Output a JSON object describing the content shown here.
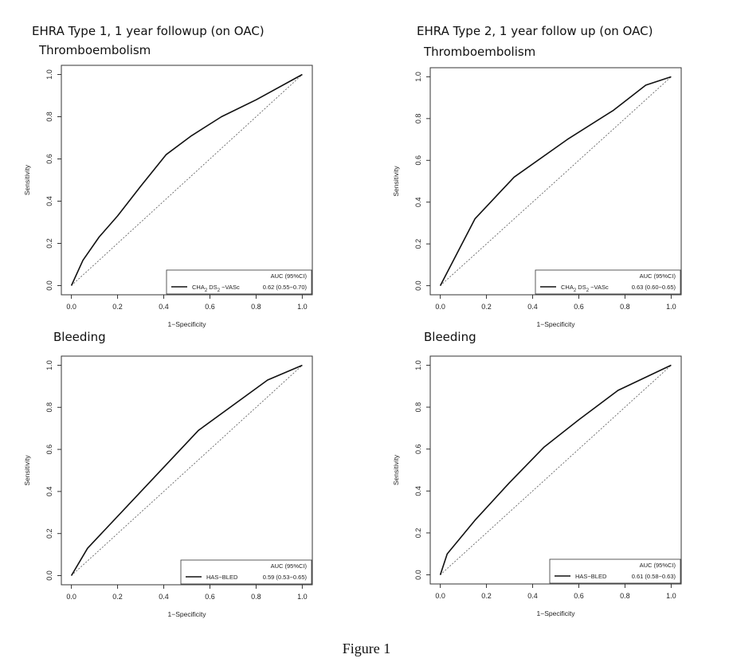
{
  "figure": {
    "caption": "Figure 1"
  },
  "headers": {
    "type1": "EHRA Type 1, 1 year followup (on OAC)",
    "type2": "EHRA Type 2, 1 year follow up (on OAC)"
  },
  "chart_data": [
    {
      "type": "line",
      "title": "Thromboembolism",
      "xlabel": "1−Specificity",
      "ylabel": "Sensitivity",
      "xlim": [
        0,
        1
      ],
      "ylim": [
        0,
        1
      ],
      "xticks": [
        "0.0",
        "0.2",
        "0.4",
        "0.6",
        "0.8",
        "1.0"
      ],
      "yticks": [
        "0.0",
        "0.2",
        "0.4",
        "0.6",
        "0.8",
        "1.0"
      ],
      "legend": {
        "position": "bottom-right",
        "header": "AUC (95%CI)",
        "label_html": "CHA<tspan baseline-shift=\"sub\" font-size=\"6\">2</tspan> DS<tspan baseline-shift=\"sub\" font-size=\"6\">2</tspan> −VASc",
        "label": "CHA2 DS2 −VASc",
        "value": "0.62 (0.55−0.70)"
      },
      "reference_line": {
        "x": [
          0,
          1
        ],
        "y": [
          0,
          1
        ],
        "style": "dotted"
      },
      "series": [
        {
          "x": [
            0,
            0.05,
            0.12,
            0.2,
            0.3,
            0.41,
            0.52,
            0.65,
            0.8,
            1.0
          ],
          "y": [
            0,
            0.12,
            0.23,
            0.33,
            0.47,
            0.62,
            0.71,
            0.8,
            0.88,
            1.0
          ]
        }
      ]
    },
    {
      "type": "line",
      "title": "Thromboembolism",
      "xlabel": "1−Specificity",
      "ylabel": "Sensitivity",
      "xlim": [
        0,
        1
      ],
      "ylim": [
        0,
        1
      ],
      "xticks": [
        "0.0",
        "0.2",
        "0.4",
        "0.6",
        "0.8",
        "1.0"
      ],
      "yticks": [
        "0.0",
        "0.2",
        "0.4",
        "0.6",
        "0.8",
        "1.0"
      ],
      "legend": {
        "position": "bottom-right",
        "header": "AUC (95%CI)",
        "label_html": "CHA<tspan baseline-shift=\"sub\" font-size=\"6\">2</tspan> DS<tspan baseline-shift=\"sub\" font-size=\"6\">2</tspan> −VASc",
        "label": "CHA2 DS2 −VASc",
        "value": "0.63 (0.60−0.65)"
      },
      "reference_line": {
        "x": [
          0,
          1
        ],
        "y": [
          0,
          1
        ],
        "style": "dotted"
      },
      "series": [
        {
          "x": [
            0,
            0.15,
            0.32,
            0.55,
            0.75,
            0.89,
            1.0
          ],
          "y": [
            0,
            0.32,
            0.52,
            0.7,
            0.84,
            0.96,
            1.0
          ]
        }
      ]
    },
    {
      "type": "line",
      "title": "Bleeding",
      "xlabel": "1−Specificity",
      "ylabel": "Sensitivity",
      "xlim": [
        0,
        1
      ],
      "ylim": [
        0,
        1
      ],
      "xticks": [
        "0.0",
        "0.2",
        "0.4",
        "0.6",
        "0.8",
        "1.0"
      ],
      "yticks": [
        "0.0",
        "0.2",
        "0.4",
        "0.6",
        "0.8",
        "1.0"
      ],
      "legend": {
        "position": "bottom-right",
        "header": "AUC (95%CI)",
        "label_html": "HAS−BLED",
        "label": "HAS−BLED",
        "value": "0.59 (0.53−0.65)"
      },
      "reference_line": {
        "x": [
          0,
          1
        ],
        "y": [
          0,
          1
        ],
        "style": "dotted"
      },
      "series": [
        {
          "x": [
            0,
            0.07,
            0.55,
            0.85,
            1.0
          ],
          "y": [
            0,
            0.13,
            0.69,
            0.93,
            1.0
          ]
        }
      ]
    },
    {
      "type": "line",
      "title": "Bleeding",
      "xlabel": "1−Specificity",
      "ylabel": "Sensitivity",
      "xlim": [
        0,
        1
      ],
      "ylim": [
        0,
        1
      ],
      "xticks": [
        "0.0",
        "0.2",
        "0.4",
        "0.6",
        "0.8",
        "1.0"
      ],
      "yticks": [
        "0.0",
        "0.2",
        "0.4",
        "0.6",
        "0.8",
        "1.0"
      ],
      "legend": {
        "position": "bottom-right",
        "header": "AUC (95%CI)",
        "label_html": "HAS−BLED",
        "label": "HAS−BLED",
        "value": "0.61 (0.58−0.63)"
      },
      "reference_line": {
        "x": [
          0,
          1
        ],
        "y": [
          0,
          1
        ],
        "style": "dotted"
      },
      "series": [
        {
          "x": [
            0,
            0.03,
            0.15,
            0.3,
            0.45,
            0.6,
            0.77,
            1.0
          ],
          "y": [
            0,
            0.1,
            0.26,
            0.44,
            0.61,
            0.74,
            0.88,
            1.0
          ]
        }
      ]
    }
  ]
}
